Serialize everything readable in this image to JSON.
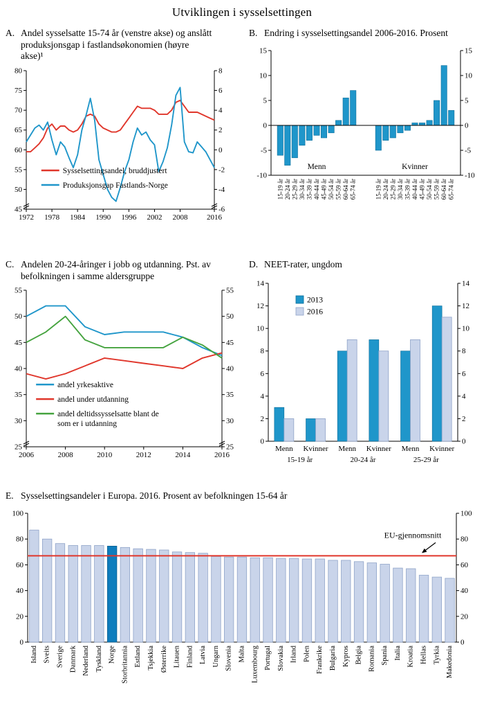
{
  "title": "Utviklingen i sysselsettingen",
  "colors": {
    "red": "#e0362b",
    "blue": "#1f96ca",
    "green": "#45a33f",
    "light_blue": "#c9d4ea",
    "light_blue_border": "#8fa3c8",
    "norway_blue": "#0e7dbd",
    "axis": "#000000"
  },
  "panels": {
    "a": {
      "letter": "A.",
      "title": "Andel sysselsatte 15-74 år (venstre akse) og anslått produksjonsgap i fastlandsøkonomien (høyre akse)¹"
    },
    "b": {
      "letter": "B.",
      "title": "Endring i sysselsettingsandel 2006-2016. Prosent"
    },
    "c": {
      "letter": "C.",
      "title": "Andelen 20-24-åringer i jobb og utdanning. Pst. av befolkningen i samme aldersgruppe"
    },
    "d": {
      "letter": "D.",
      "title": "NEET-rater, ungdom"
    },
    "e": {
      "letter": "E.",
      "title": "Sysselsettingsandeler i Europa. 2016. Prosent av befolkningen 15-64 år"
    }
  },
  "chart_data": [
    {
      "id": "a",
      "type": "line",
      "title": "Andel sysselsatte 15-74 år (venstre akse) og anslått produksjonsgap i fastlandsøkonomien (høyre akse)",
      "x_start": 1972,
      "x_ticks": [
        1972,
        1978,
        1984,
        1990,
        1996,
        2002,
        2008,
        2016
      ],
      "left": {
        "min": 45,
        "max": 80,
        "ticks": [
          45,
          50,
          55,
          60,
          65,
          70,
          75,
          80
        ]
      },
      "right": {
        "min": -6,
        "max": 8,
        "ticks": [
          -6,
          -4,
          -2,
          0,
          2,
          4,
          6,
          8
        ]
      },
      "axis_break": true,
      "legend": {
        "fx": 0.08,
        "fy": 0.74
      },
      "series": [
        {
          "name": "Sysselsettingsandel, bruddjustert",
          "color_key": "red",
          "axis": "left",
          "values": [
            59.5,
            59.5,
            60.5,
            61.5,
            63,
            65.5,
            66.5,
            65,
            66,
            66,
            65,
            64.5,
            65,
            66.5,
            68.5,
            69,
            68.5,
            66.5,
            65.5,
            65,
            64.5,
            64.5,
            65,
            66.5,
            68,
            69.5,
            71,
            70.5,
            70.5,
            70.5,
            70,
            69,
            69,
            69,
            70,
            72,
            72.5,
            71,
            69.5,
            69.5,
            69.5,
            69,
            68.5,
            68,
            67.5
          ]
        },
        {
          "name": "Produksjonsgap Fastlands-Norge",
          "color_key": "blue",
          "axis": "right",
          "values": [
            0.8,
            1.5,
            2.2,
            2.5,
            2,
            2.8,
            1,
            -0.5,
            0.8,
            0.3,
            -0.8,
            -1.8,
            -0.5,
            2,
            3.5,
            5.2,
            3,
            -1,
            -2.5,
            -4,
            -4.8,
            -5.2,
            -3.8,
            -2.2,
            -1,
            0.8,
            2.2,
            1.5,
            1.8,
            1,
            0.5,
            -2.2,
            -1.2,
            0.2,
            2.5,
            5.5,
            6.3,
            0.8,
            -0.2,
            -0.3,
            0.8,
            0.3,
            -0.2,
            -1,
            -1.8
          ]
        }
      ]
    },
    {
      "id": "b",
      "type": "group_bars",
      "title": "Endring i sysselsettingsandel 2006-2016. Prosent",
      "y": {
        "min": -10,
        "max": 15,
        "ticks": [
          -10,
          -5,
          0,
          5,
          10,
          15
        ]
      },
      "age_labels": [
        "15-19 år",
        "20-24 år",
        "25-29 år",
        "30-34 år",
        "35-39 år",
        "40-44 år",
        "45-49 år",
        "50-54 år",
        "55-59 år",
        "60-64 år",
        "65-74 år"
      ],
      "groups": [
        {
          "label": "Menn",
          "values": [
            -6,
            -8,
            -6.5,
            -4,
            -3,
            -2,
            -2.5,
            -1.5,
            1,
            5.5,
            7
          ]
        },
        {
          "label": "Kvinner",
          "values": [
            -5,
            -3,
            -2.5,
            -1.5,
            -1,
            0.5,
            0.5,
            1,
            5,
            12,
            3
          ]
        }
      ]
    },
    {
      "id": "c",
      "type": "line",
      "title": "Andelen 20-24-åringer i jobb og utdanning. Pst. av befolkningen i samme aldersgruppe",
      "x_start": 2006,
      "x_ticks": [
        2006,
        2008,
        2010,
        2012,
        2014,
        2016
      ],
      "left": {
        "min": 25,
        "max": 55,
        "ticks": [
          25,
          30,
          35,
          40,
          45,
          50,
          55
        ]
      },
      "axis_break": true,
      "legend": {
        "fx": 0.05,
        "fy": 0.62
      },
      "series": [
        {
          "name": "andel yrkesaktive",
          "color_key": "blue",
          "axis": "left",
          "values": [
            50,
            52,
            52,
            48,
            46.5,
            47,
            47,
            47,
            46,
            44,
            42.5
          ]
        },
        {
          "name": "andel under utdanning",
          "color_key": "red",
          "axis": "left",
          "values": [
            39,
            38,
            39,
            40.5,
            42,
            41.5,
            41,
            40.5,
            40,
            42,
            43
          ]
        },
        {
          "name": "andel deltidssysselsatte blant de\nsom er i utdanning",
          "color_key": "green",
          "axis": "left",
          "values": [
            45,
            47,
            50,
            45.5,
            44,
            44,
            44,
            44,
            46,
            44.5,
            42
          ]
        }
      ]
    },
    {
      "id": "d",
      "type": "pair_bars",
      "title": "NEET-rater, ungdom",
      "y": {
        "min": 0,
        "max": 14,
        "ticks": [
          0,
          2,
          4,
          6,
          8,
          10,
          12,
          14
        ]
      },
      "sub_labels": [
        "Menn",
        "Kvinner",
        "Menn",
        "Kvinner",
        "Menn",
        "Kvinner"
      ],
      "group_labels": [
        "15-19 år",
        "20-24 år",
        "25-29 år"
      ],
      "series": [
        {
          "name": "2013",
          "color_key": "blue",
          "values": [
            3,
            2,
            8,
            9,
            8,
            12
          ]
        },
        {
          "name": "2016",
          "color_key": "light_blue",
          "values": [
            2,
            2,
            9,
            8,
            9,
            11
          ]
        }
      ]
    },
    {
      "id": "e",
      "type": "bars",
      "title": "Sysselsettingsandeler i Europa. 2016. Prosent av befolkningen 15-64 år",
      "y": {
        "min": 0,
        "max": 100,
        "ticks": [
          0,
          20,
          40,
          60,
          80,
          100
        ]
      },
      "highlight": "Norge",
      "ref_line": {
        "value": 67,
        "label": "EU-gjennomsnitt",
        "color_key": "red"
      },
      "categories": [
        "Island",
        "Sveits",
        "Sverige",
        "Danmark",
        "Nederland",
        "Tyskland",
        "Norge",
        "Storbritannia",
        "Estland",
        "Tsjekkia",
        "Østerrike",
        "Litauen",
        "Finland",
        "Latvia",
        "Ungarn",
        "Slovenia",
        "Malta",
        "Luxembourg",
        "Portugal",
        "Slovakia",
        "Irland",
        "Polen",
        "Frankrike",
        "Bulgaria",
        "Kypros",
        "Belgia",
        "Romania",
        "Spania",
        "Italia",
        "Kroatia",
        "Hellas",
        "Tyrkia",
        "Makedonia"
      ],
      "values": [
        87,
        80,
        76.5,
        75,
        75,
        75,
        74.5,
        73.5,
        72.5,
        72,
        71.5,
        70,
        69.5,
        69,
        66.5,
        66,
        66,
        65.5,
        65.5,
        65,
        65,
        64.5,
        64.5,
        63.5,
        63.5,
        62.5,
        61.5,
        60.5,
        57.5,
        57,
        52,
        50.5,
        49.5
      ]
    }
  ]
}
